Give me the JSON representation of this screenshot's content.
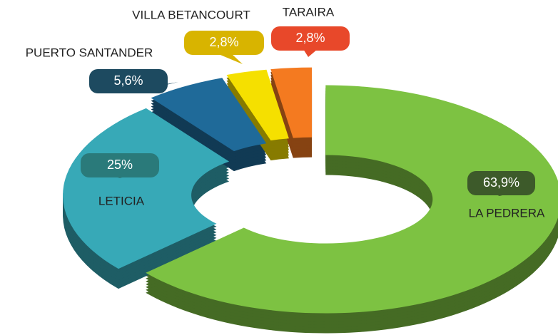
{
  "chart_data": {
    "type": "donut",
    "categories": [
      "LA PEDRERA",
      "LETICIA",
      "PUERTO SANTANDER",
      "VILLA BETANCOURT",
      "TARAIRA"
    ],
    "values": [
      63.9,
      25,
      5.6,
      2.8,
      2.8
    ],
    "value_labels": [
      "63,9%",
      "25%",
      "5,6%",
      "2,8%",
      "2,8%"
    ],
    "colors": [
      "#7dc242",
      "#37a9b7",
      "#1f6a99",
      "#f5e000",
      "#f47a20"
    ],
    "label_colors": [
      "#3d5a2a",
      "#2a7a7a",
      "#1d4a60",
      "#d8b400",
      "#e8482a"
    ]
  }
}
